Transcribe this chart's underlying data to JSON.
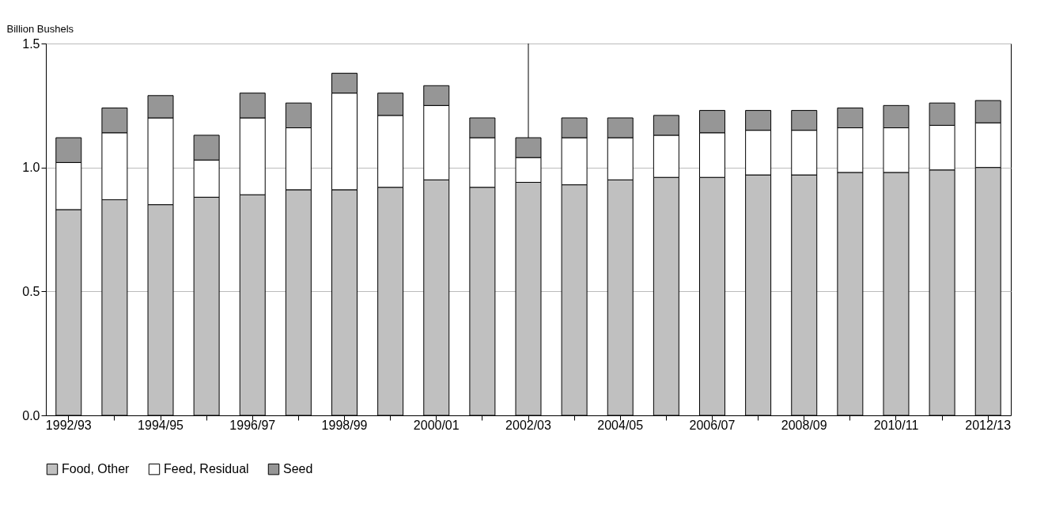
{
  "chart_data": {
    "type": "bar",
    "stacked": true,
    "ylabel": "Billion Bushels",
    "categories": [
      "1992/93",
      null,
      "1994/95",
      null,
      "1996/97",
      null,
      "1998/99",
      null,
      "2000/01",
      null,
      "2002/03",
      null,
      "2004/05",
      null,
      "2006/07",
      null,
      "2008/09",
      null,
      "2010/11",
      null,
      "2012/13"
    ],
    "series": [
      {
        "name": "Food, Other",
        "color": "#c0c0c0",
        "values": [
          0.83,
          0.87,
          0.85,
          0.88,
          0.89,
          0.91,
          0.91,
          0.92,
          0.95,
          0.92,
          0.94,
          0.93,
          0.95,
          0.96,
          0.96,
          0.97,
          0.97,
          0.98,
          0.98,
          0.99,
          1.0
        ]
      },
      {
        "name": "Feed, Residual",
        "color": "#ffffff",
        "values": [
          0.19,
          0.27,
          0.35,
          0.15,
          0.31,
          0.25,
          0.39,
          0.29,
          0.3,
          0.2,
          0.1,
          0.19,
          0.17,
          0.17,
          0.18,
          0.18,
          0.18,
          0.18,
          0.18,
          0.18,
          0.18
        ]
      },
      {
        "name": "Seed",
        "color": "#969696",
        "values": [
          0.1,
          0.1,
          0.09,
          0.1,
          0.1,
          0.1,
          0.08,
          0.09,
          0.08,
          0.08,
          0.08,
          0.08,
          0.08,
          0.08,
          0.09,
          0.08,
          0.08,
          0.08,
          0.09,
          0.09,
          0.09
        ]
      }
    ],
    "ylim": [
      0,
      1.5
    ],
    "yticks": [
      {
        "value": 0,
        "label": "0.0"
      },
      {
        "value": 0.5,
        "label": "0.5"
      },
      {
        "value": 1,
        "label": "1.0"
      },
      {
        "value": 1.5,
        "label": "1.5"
      }
    ],
    "grid": "y",
    "legend": "bottom",
    "ref_lines": [
      {
        "axis": "x",
        "value": "2002/03",
        "color": "#000000"
      }
    ]
  }
}
